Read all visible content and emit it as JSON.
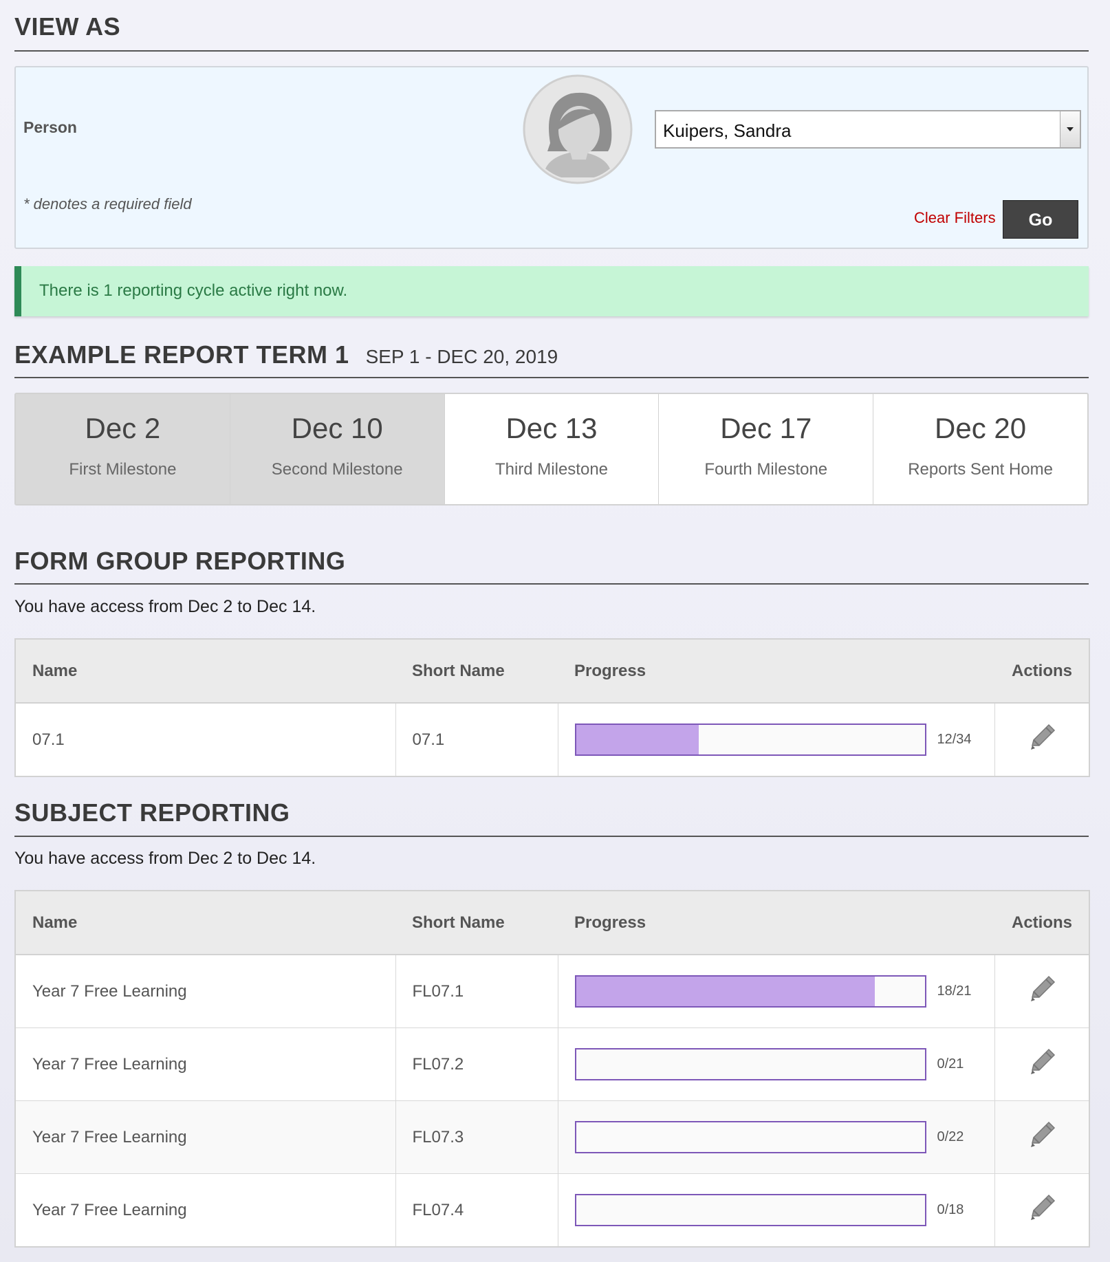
{
  "view_as": {
    "title": "VIEW AS",
    "person_label": "Person",
    "person_value": "Kuipers, Sandra",
    "required_note": "* denotes a required field",
    "clear_filters": "Clear Filters",
    "go": "Go"
  },
  "alert": "There is 1 reporting cycle active right now.",
  "term": {
    "title": "EXAMPLE REPORT TERM 1",
    "dates": "SEP 1 - DEC 20, 2019"
  },
  "milestones": [
    {
      "date": "Dec 2",
      "label": "First Milestone",
      "past": true
    },
    {
      "date": "Dec 10",
      "label": "Second Milestone",
      "past": true
    },
    {
      "date": "Dec 13",
      "label": "Third Milestone",
      "past": false
    },
    {
      "date": "Dec 17",
      "label": "Fourth Milestone",
      "past": false
    },
    {
      "date": "Dec 20",
      "label": "Reports Sent Home",
      "past": false
    }
  ],
  "form_group": {
    "title": "FORM GROUP REPORTING",
    "access": "You have access from Dec 2 to Dec 14.",
    "columns": [
      "Name",
      "Short Name",
      "Progress",
      "Actions"
    ],
    "rows": [
      {
        "name": "07.1",
        "short_name": "07.1",
        "progress_value": 12,
        "progress_max": 34,
        "progress_label": "12/34"
      }
    ]
  },
  "subject": {
    "title": "SUBJECT REPORTING",
    "access": "You have access from Dec 2 to Dec 14.",
    "columns": [
      "Name",
      "Short Name",
      "Progress",
      "Actions"
    ],
    "rows": [
      {
        "name": "Year 7 Free Learning",
        "short_name": "FL07.1",
        "progress_value": 18,
        "progress_max": 21,
        "progress_label": "18/21"
      },
      {
        "name": "Year 7 Free Learning",
        "short_name": "FL07.2",
        "progress_value": 0,
        "progress_max": 21,
        "progress_label": "0/21"
      },
      {
        "name": "Year 7 Free Learning",
        "short_name": "FL07.3",
        "progress_value": 0,
        "progress_max": 22,
        "progress_label": "0/22"
      },
      {
        "name": "Year 7 Free Learning",
        "short_name": "FL07.4",
        "progress_value": 0,
        "progress_max": 18,
        "progress_label": "0/18"
      }
    ]
  }
}
